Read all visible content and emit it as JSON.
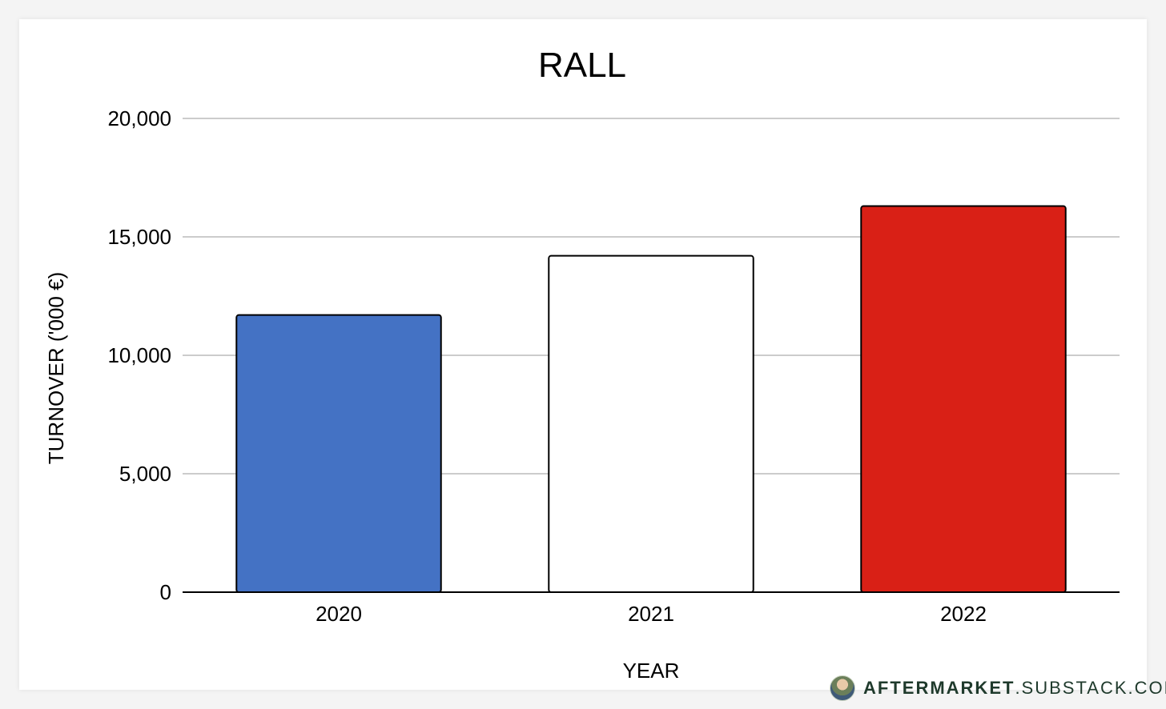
{
  "chart_data": {
    "type": "bar",
    "title": "RALL",
    "xlabel": "YEAR",
    "ylabel": "TURNOVER ('000 €)",
    "categories": [
      "2020",
      "2021",
      "2022"
    ],
    "values": [
      11700,
      14200,
      16300
    ],
    "bar_colors": [
      "#4472c4",
      "#ffffff",
      "#d92016"
    ],
    "ylim": [
      0,
      20000
    ],
    "yticks": [
      0,
      5000,
      10000,
      15000,
      20000
    ],
    "ytick_labels": [
      "0",
      "5,000",
      "10,000",
      "15,000",
      "20,000"
    ],
    "grid": true,
    "legend": "none"
  },
  "watermark": {
    "brand": "AFTERMARKET",
    "domain": ".SUBSTACK.COM",
    "icon": "author-avatar-icon"
  }
}
